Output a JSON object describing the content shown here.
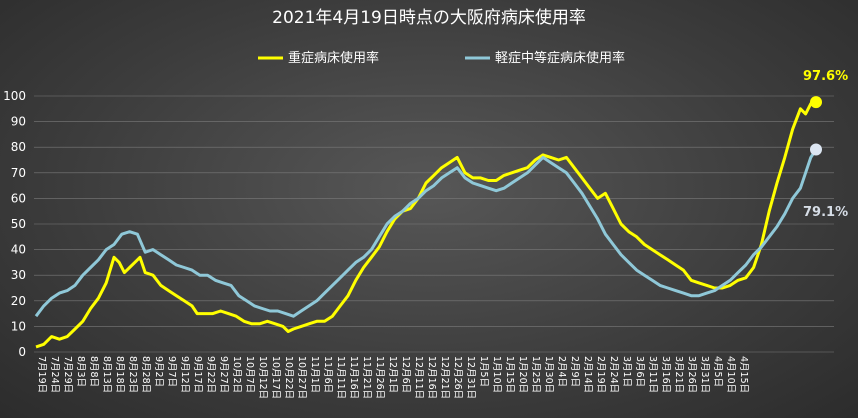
{
  "chart_data": {
    "type": "line",
    "title": "2021年4月19日時点の大阪府病床使用率",
    "ylim": [
      0,
      100
    ],
    "yticks": [
      0,
      10,
      20,
      30,
      40,
      50,
      60,
      70,
      80,
      90,
      100
    ],
    "grid": "horizontal",
    "legend_position": "top",
    "x_tick_labels": [
      "7月19日",
      "7月24日",
      "7月29日",
      "8月3日",
      "8月8日",
      "8月13日",
      "8月18日",
      "8月23日",
      "8月28日",
      "9月2日",
      "9月7日",
      "9月12日",
      "9月17日",
      "9月22日",
      "9月27日",
      "10月2日",
      "10月7日",
      "10月12日",
      "10月17日",
      "10月22日",
      "10月27日",
      "11月1日",
      "11月6日",
      "11月11日",
      "11月16日",
      "11月21日",
      "11月26日",
      "12月1日",
      "12月6日",
      "12月11日",
      "12月16日",
      "12月21日",
      "12月26日",
      "12月31日",
      "1月5日",
      "1月10日",
      "1月15日",
      "1月20日",
      "1月25日",
      "1月30日",
      "2月4日",
      "2月9日",
      "2月14日",
      "2月19日",
      "2月24日",
      "3月1日",
      "3月6日",
      "3月11日",
      "3月16日",
      "3月21日",
      "3月26日",
      "3月31日",
      "4月5日",
      "4月10日",
      "4月15日"
    ],
    "x_tick_step_days": 5,
    "series": [
      {
        "name": "重症病床使用率",
        "color": "#ffff00",
        "end_label": "97.6%",
        "points": [
          [
            0,
            2
          ],
          [
            3,
            3
          ],
          [
            6,
            6
          ],
          [
            9,
            5
          ],
          [
            12,
            6
          ],
          [
            15,
            9
          ],
          [
            18,
            12
          ],
          [
            21,
            17
          ],
          [
            24,
            21
          ],
          [
            27,
            27
          ],
          [
            30,
            37
          ],
          [
            32,
            35
          ],
          [
            34,
            31
          ],
          [
            36,
            33
          ],
          [
            38,
            35
          ],
          [
            40,
            37
          ],
          [
            42,
            31
          ],
          [
            45,
            30
          ],
          [
            48,
            26
          ],
          [
            51,
            24
          ],
          [
            54,
            22
          ],
          [
            57,
            20
          ],
          [
            60,
            18
          ],
          [
            62,
            15
          ],
          [
            65,
            15
          ],
          [
            68,
            15
          ],
          [
            71,
            16
          ],
          [
            74,
            15
          ],
          [
            77,
            14
          ],
          [
            80,
            12
          ],
          [
            83,
            11
          ],
          [
            86,
            11
          ],
          [
            89,
            12
          ],
          [
            92,
            11
          ],
          [
            95,
            10
          ],
          [
            97,
            8
          ],
          [
            99,
            9
          ],
          [
            102,
            10
          ],
          [
            105,
            11
          ],
          [
            108,
            12
          ],
          [
            111,
            12
          ],
          [
            114,
            14
          ],
          [
            117,
            18
          ],
          [
            120,
            22
          ],
          [
            123,
            28
          ],
          [
            126,
            33
          ],
          [
            129,
            37
          ],
          [
            132,
            41
          ],
          [
            135,
            47
          ],
          [
            138,
            52
          ],
          [
            141,
            55
          ],
          [
            144,
            56
          ],
          [
            147,
            60
          ],
          [
            150,
            66
          ],
          [
            153,
            69
          ],
          [
            156,
            72
          ],
          [
            159,
            74
          ],
          [
            162,
            76
          ],
          [
            165,
            70
          ],
          [
            168,
            68
          ],
          [
            171,
            68
          ],
          [
            174,
            67
          ],
          [
            177,
            67
          ],
          [
            180,
            69
          ],
          [
            183,
            70
          ],
          [
            186,
            71
          ],
          [
            189,
            72
          ],
          [
            192,
            75
          ],
          [
            195,
            77
          ],
          [
            198,
            76
          ],
          [
            201,
            75
          ],
          [
            204,
            76
          ],
          [
            207,
            72
          ],
          [
            210,
            68
          ],
          [
            213,
            64
          ],
          [
            216,
            60
          ],
          [
            219,
            62
          ],
          [
            222,
            56
          ],
          [
            225,
            50
          ],
          [
            228,
            47
          ],
          [
            231,
            45
          ],
          [
            234,
            42
          ],
          [
            237,
            40
          ],
          [
            240,
            38
          ],
          [
            243,
            36
          ],
          [
            246,
            34
          ],
          [
            249,
            32
          ],
          [
            252,
            28
          ],
          [
            255,
            27
          ],
          [
            258,
            26
          ],
          [
            261,
            25
          ],
          [
            264,
            25
          ],
          [
            267,
            26
          ],
          [
            270,
            28
          ],
          [
            273,
            29
          ],
          [
            276,
            33
          ],
          [
            279,
            42
          ],
          [
            282,
            55
          ],
          [
            285,
            66
          ],
          [
            288,
            76
          ],
          [
            291,
            87
          ],
          [
            294,
            95
          ],
          [
            296,
            93
          ],
          [
            298,
            97
          ],
          [
            300,
            97.6
          ]
        ]
      },
      {
        "name": "軽症中等症病床使用率",
        "color": "#8fc8d8",
        "end_label": "79.1%",
        "points": [
          [
            0,
            14
          ],
          [
            3,
            18
          ],
          [
            6,
            21
          ],
          [
            9,
            23
          ],
          [
            12,
            24
          ],
          [
            15,
            26
          ],
          [
            18,
            30
          ],
          [
            21,
            33
          ],
          [
            24,
            36
          ],
          [
            27,
            40
          ],
          [
            30,
            42
          ],
          [
            33,
            46
          ],
          [
            36,
            47
          ],
          [
            39,
            46
          ],
          [
            42,
            39
          ],
          [
            45,
            40
          ],
          [
            48,
            38
          ],
          [
            51,
            36
          ],
          [
            54,
            34
          ],
          [
            57,
            33
          ],
          [
            60,
            32
          ],
          [
            63,
            30
          ],
          [
            66,
            30
          ],
          [
            69,
            28
          ],
          [
            72,
            27
          ],
          [
            75,
            26
          ],
          [
            78,
            22
          ],
          [
            81,
            20
          ],
          [
            84,
            18
          ],
          [
            87,
            17
          ],
          [
            90,
            16
          ],
          [
            93,
            16
          ],
          [
            96,
            15
          ],
          [
            99,
            14
          ],
          [
            102,
            16
          ],
          [
            105,
            18
          ],
          [
            108,
            20
          ],
          [
            111,
            23
          ],
          [
            114,
            26
          ],
          [
            117,
            29
          ],
          [
            120,
            32
          ],
          [
            123,
            35
          ],
          [
            126,
            37
          ],
          [
            129,
            40
          ],
          [
            132,
            45
          ],
          [
            135,
            50
          ],
          [
            138,
            53
          ],
          [
            141,
            55
          ],
          [
            144,
            58
          ],
          [
            147,
            60
          ],
          [
            150,
            63
          ],
          [
            153,
            65
          ],
          [
            156,
            68
          ],
          [
            159,
            70
          ],
          [
            162,
            72
          ],
          [
            165,
            68
          ],
          [
            168,
            66
          ],
          [
            171,
            65
          ],
          [
            174,
            64
          ],
          [
            177,
            63
          ],
          [
            180,
            64
          ],
          [
            183,
            66
          ],
          [
            186,
            68
          ],
          [
            189,
            70
          ],
          [
            192,
            73
          ],
          [
            195,
            76
          ],
          [
            198,
            74
          ],
          [
            201,
            72
          ],
          [
            204,
            70
          ],
          [
            207,
            66
          ],
          [
            210,
            62
          ],
          [
            213,
            57
          ],
          [
            216,
            52
          ],
          [
            219,
            46
          ],
          [
            222,
            42
          ],
          [
            225,
            38
          ],
          [
            228,
            35
          ],
          [
            231,
            32
          ],
          [
            234,
            30
          ],
          [
            237,
            28
          ],
          [
            240,
            26
          ],
          [
            243,
            25
          ],
          [
            246,
            24
          ],
          [
            249,
            23
          ],
          [
            252,
            22
          ],
          [
            255,
            22
          ],
          [
            258,
            23
          ],
          [
            261,
            24
          ],
          [
            264,
            26
          ],
          [
            267,
            28
          ],
          [
            270,
            31
          ],
          [
            273,
            34
          ],
          [
            276,
            38
          ],
          [
            279,
            41
          ],
          [
            282,
            45
          ],
          [
            285,
            49
          ],
          [
            288,
            54
          ],
          [
            291,
            60
          ],
          [
            294,
            64
          ],
          [
            296,
            70
          ],
          [
            298,
            76
          ],
          [
            300,
            79.1
          ]
        ]
      }
    ]
  }
}
